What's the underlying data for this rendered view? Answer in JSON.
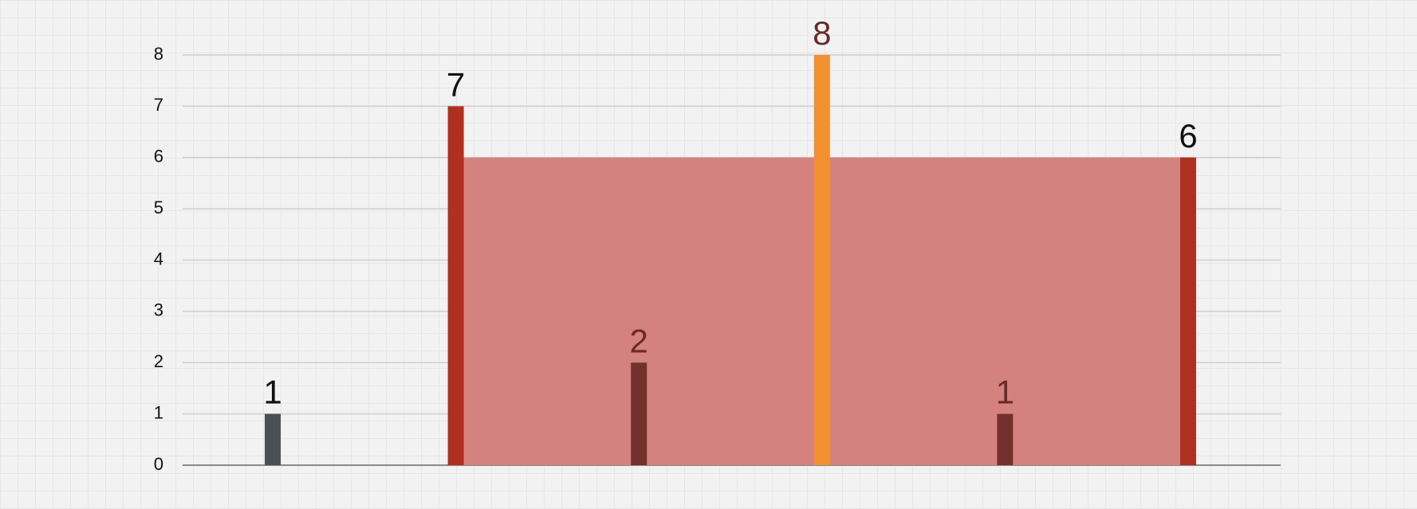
{
  "chart_data": {
    "type": "bar",
    "values": [
      1,
      7,
      2,
      8,
      1,
      6
    ],
    "colors": [
      "#4b5055",
      "#b0301f",
      "#74302f",
      "#f39030",
      "#74302f",
      "#b0301f"
    ],
    "highlight": {
      "from": 1,
      "to": 5,
      "color": "#d4827f"
    },
    "ylim": [
      0,
      8
    ],
    "yticks": [
      0,
      1,
      2,
      3,
      4,
      5,
      6,
      7,
      8
    ],
    "grid": true
  }
}
